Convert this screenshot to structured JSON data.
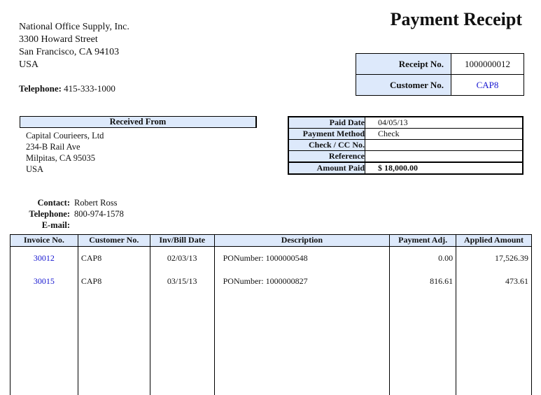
{
  "title": "Payment Receipt",
  "company": {
    "name": "National Office Supply, Inc.",
    "street": "3300 Howard Street",
    "city": "San Francisco, CA 94103",
    "country": "USA",
    "telephone_label": "Telephone:",
    "telephone": "415-333-1000"
  },
  "receipt": {
    "receipt_no_label": "Receipt No.",
    "receipt_no": "1000000012",
    "customer_no_label": "Customer No.",
    "customer_no": "CAP8"
  },
  "received_from": {
    "header": "Received From",
    "name": "Capital Courieers, Ltd",
    "street": "234-B Rail Ave",
    "city": "Milpitas, CA 95035",
    "country": "USA"
  },
  "payment": {
    "paid_date_label": "Paid Date",
    "paid_date": "04/05/13",
    "method_label": "Payment Method",
    "method": "Check",
    "check_label": "Check / CC No.",
    "check": "",
    "reference_label": "Reference",
    "reference": "",
    "amount_label": "Amount Paid",
    "amount": "$ 18,000.00"
  },
  "contact": {
    "contact_label": "Contact:",
    "contact": "Robert Ross",
    "telephone_label": "Telephone:",
    "telephone": "800-974-1578",
    "email_label": "E-mail:",
    "email": ""
  },
  "invoices": {
    "headers": [
      "Invoice No.",
      "Customer No.",
      "Inv/Bill Date",
      "Description",
      "Payment Adj.",
      "Applied Amount"
    ],
    "rows": [
      {
        "invoice": "30012",
        "customer": "CAP8",
        "date": "02/03/13",
        "description": "PONumber: 1000000548",
        "adj": "0.00",
        "applied": "17,526.39"
      },
      {
        "invoice": "30015",
        "customer": "CAP8",
        "date": "03/15/13",
        "description": "PONumber: 1000000827",
        "adj": "816.61",
        "applied": "473.61"
      }
    ]
  },
  "colors": {
    "label_bg": "#dde9fb",
    "link": "#1515d0"
  }
}
